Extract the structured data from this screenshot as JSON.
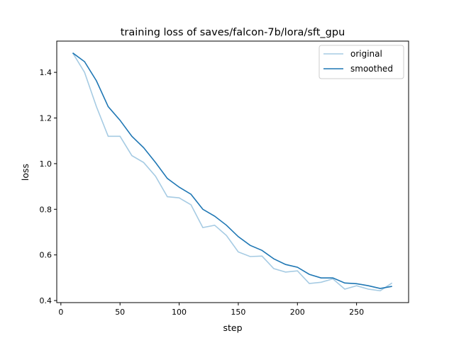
{
  "chart_data": {
    "type": "line",
    "title": "training loss of saves/falcon-7b/lora/sft_gpu",
    "xlabel": "step",
    "ylabel": "loss",
    "xlim": [
      -3.5,
      294
    ],
    "ylim": [
      0.391,
      1.537
    ],
    "xticks": [
      0,
      50,
      100,
      150,
      200,
      250
    ],
    "yticks": [
      0.4,
      0.6,
      0.8,
      1.0,
      1.2,
      1.4
    ],
    "ytick_labels": [
      "0.4",
      "0.6",
      "0.8",
      "1.0",
      "1.2",
      "1.4"
    ],
    "grid": false,
    "legend_position": "top-right",
    "x": [
      10,
      20,
      30,
      40,
      50,
      60,
      70,
      80,
      90,
      100,
      110,
      120,
      130,
      140,
      150,
      160,
      170,
      180,
      190,
      200,
      210,
      220,
      230,
      240,
      250,
      260,
      270,
      280
    ],
    "series": [
      {
        "name": "original",
        "color": "#a6cbe3",
        "values": [
          1.485,
          1.4,
          1.25,
          1.12,
          1.12,
          1.035,
          1.005,
          0.945,
          0.855,
          0.85,
          0.82,
          0.72,
          0.73,
          0.685,
          0.613,
          0.593,
          0.595,
          0.54,
          0.525,
          0.53,
          0.475,
          0.48,
          0.495,
          0.45,
          0.465,
          0.45,
          0.443,
          0.477
        ]
      },
      {
        "name": "smoothed",
        "color": "#1f77b4",
        "values": [
          1.485,
          1.447,
          1.363,
          1.25,
          1.19,
          1.12,
          1.07,
          1.005,
          0.935,
          0.897,
          0.866,
          0.8,
          0.77,
          0.73,
          0.68,
          0.642,
          0.62,
          0.583,
          0.558,
          0.546,
          0.515,
          0.499,
          0.499,
          0.477,
          0.474,
          0.465,
          0.453,
          0.462
        ]
      }
    ]
  }
}
